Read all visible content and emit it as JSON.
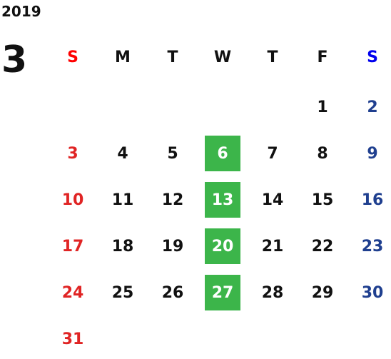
{
  "year": "2019",
  "month": "3",
  "weekdays": [
    "S",
    "M",
    "T",
    "W",
    "T",
    "F",
    "S"
  ],
  "weeks": [
    [
      null,
      null,
      null,
      null,
      null,
      1,
      2
    ],
    [
      3,
      4,
      5,
      6,
      7,
      8,
      9
    ],
    [
      10,
      11,
      12,
      13,
      14,
      15,
      16
    ],
    [
      17,
      18,
      19,
      20,
      21,
      22,
      23
    ],
    [
      24,
      25,
      26,
      27,
      28,
      29,
      30
    ],
    [
      31,
      null,
      null,
      null,
      null,
      null,
      null
    ]
  ]
}
